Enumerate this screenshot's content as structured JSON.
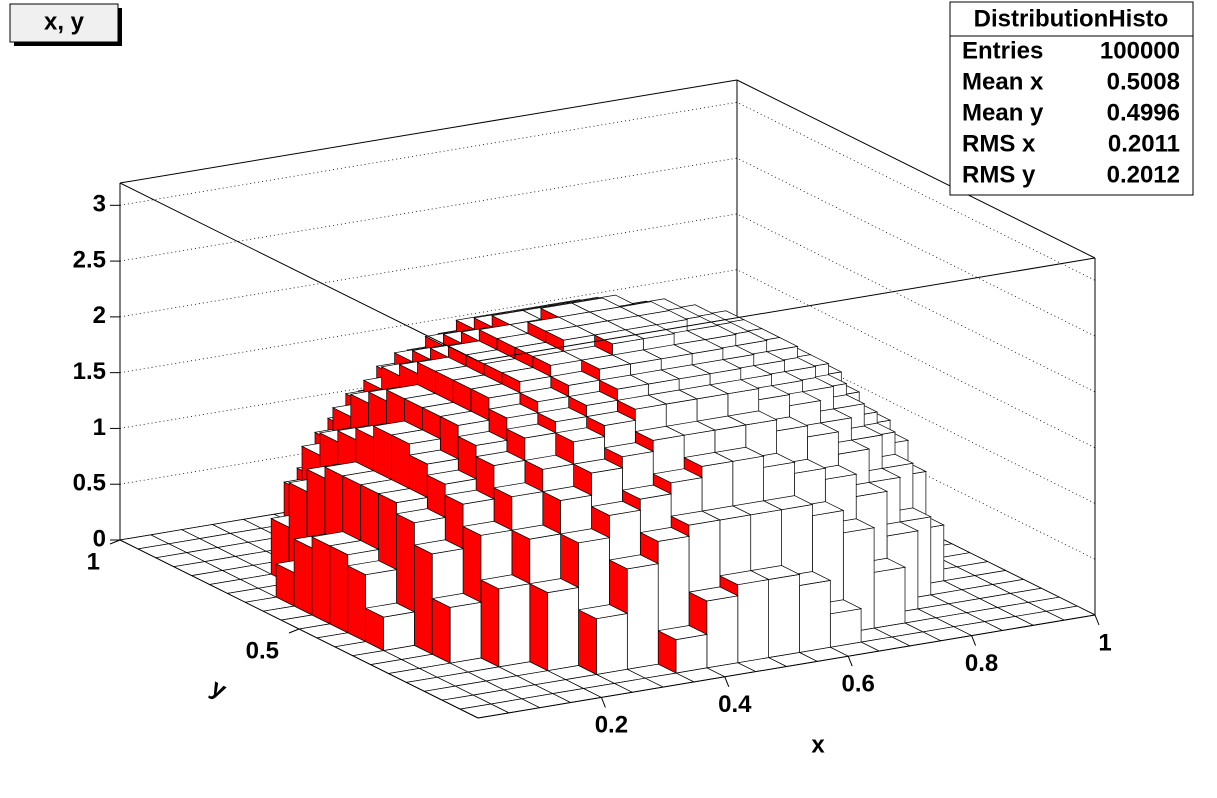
{
  "chart_data": {
    "type": "lego",
    "title": "x, y",
    "xlabel": "x",
    "ylabel": "y",
    "xlim": [
      0,
      1
    ],
    "ylim": [
      0,
      1
    ],
    "zlim": [
      0,
      3.2
    ],
    "xticks": [
      0.2,
      0.4,
      0.6,
      0.8,
      1
    ],
    "yticks": [
      0.5,
      1
    ],
    "zticks": [
      0,
      0.5,
      1,
      1.5,
      2,
      2.5,
      3
    ],
    "grid": true,
    "side_color": "#ff0000",
    "top_color": "#ffffff",
    "xbins": [
      0,
      0.05,
      0.1,
      0.15,
      0.2,
      0.25,
      0.3,
      0.35,
      0.4,
      0.45,
      0.5,
      0.55,
      0.6,
      0.65,
      0.7,
      0.75,
      0.8,
      0.85,
      0.9,
      0.95,
      1
    ],
    "ybins": [
      0,
      0.05,
      0.1,
      0.15,
      0.2,
      0.25,
      0.3,
      0.35,
      0.4,
      0.45,
      0.5,
      0.55,
      0.6,
      0.65,
      0.7,
      0.75,
      0.8,
      0.85,
      0.9,
      0.95,
      1
    ],
    "z": [
      [
        0,
        0,
        0,
        0,
        0,
        0,
        0,
        0,
        0,
        0,
        0,
        0,
        0,
        0,
        0,
        0,
        0,
        0,
        0,
        0
      ],
      [
        0,
        0,
        0,
        0,
        0,
        0,
        0,
        0.3,
        0.6,
        0.7,
        0.7,
        0.6,
        0.3,
        0,
        0,
        0,
        0,
        0,
        0,
        0
      ],
      [
        0,
        0,
        0,
        0,
        0,
        0.5,
        0.9,
        1.1,
        1.2,
        1.2,
        1.2,
        1.2,
        1.1,
        0.9,
        0.5,
        0,
        0,
        0,
        0,
        0
      ],
      [
        0,
        0,
        0,
        0,
        0.7,
        1.1,
        1.3,
        1.4,
        1.5,
        1.6,
        1.6,
        1.5,
        1.4,
        1.3,
        1.1,
        0.7,
        0,
        0,
        0,
        0
      ],
      [
        0,
        0,
        0,
        0.7,
        1.1,
        1.4,
        1.6,
        1.7,
        1.8,
        1.8,
        1.8,
        1.8,
        1.7,
        1.6,
        1.4,
        1.1,
        0.7,
        0,
        0,
        0
      ],
      [
        0,
        0,
        0.5,
        1.1,
        1.4,
        1.6,
        1.8,
        1.9,
        2,
        2,
        2,
        2,
        1.9,
        1.8,
        1.6,
        1.4,
        1.1,
        0.5,
        0,
        0
      ],
      [
        0,
        0,
        0.9,
        1.3,
        1.6,
        1.8,
        1.9,
        2,
        2.1,
        2.1,
        2.1,
        2.1,
        2,
        1.9,
        1.8,
        1.6,
        1.3,
        0.9,
        0,
        0
      ],
      [
        0,
        0.3,
        1.1,
        1.4,
        1.7,
        1.9,
        2,
        2.1,
        2.2,
        2.2,
        2.2,
        2.2,
        2.1,
        2,
        1.9,
        1.7,
        1.4,
        1.1,
        0.3,
        0
      ],
      [
        0,
        0.6,
        1.2,
        1.5,
        1.8,
        2,
        2.1,
        2.2,
        2.2,
        2.3,
        2.3,
        2.2,
        2.2,
        2.1,
        2,
        1.8,
        1.5,
        1.2,
        0.6,
        0
      ],
      [
        0,
        0.7,
        1.2,
        1.6,
        1.8,
        2,
        2.1,
        2.2,
        2.3,
        2.3,
        2.3,
        2.3,
        2.2,
        2.1,
        2,
        1.8,
        1.6,
        1.2,
        0.7,
        0
      ],
      [
        0,
        0.7,
        1.2,
        1.6,
        1.8,
        2,
        2.1,
        2.2,
        2.3,
        2.3,
        2.3,
        2.3,
        2.2,
        2.1,
        2,
        1.8,
        1.6,
        1.2,
        0.7,
        0
      ],
      [
        0,
        0.6,
        1.2,
        1.5,
        1.8,
        2,
        2.1,
        2.2,
        2.2,
        2.3,
        2.3,
        2.2,
        2.2,
        2.1,
        2,
        1.8,
        1.5,
        1.2,
        0.6,
        0
      ],
      [
        0,
        0.3,
        1.1,
        1.4,
        1.7,
        1.9,
        2,
        2.1,
        2.2,
        2.2,
        2.2,
        2.2,
        2.1,
        2,
        1.9,
        1.7,
        1.4,
        1.1,
        0.3,
        0
      ],
      [
        0,
        0,
        0.9,
        1.3,
        1.6,
        1.8,
        1.9,
        2,
        2.1,
        2.1,
        2.1,
        2.1,
        2,
        1.9,
        1.8,
        1.6,
        1.3,
        0.9,
        0,
        0
      ],
      [
        0,
        0,
        0.5,
        1.1,
        1.4,
        1.6,
        1.8,
        1.9,
        2,
        2,
        2,
        2,
        1.9,
        1.8,
        1.6,
        1.4,
        1.1,
        0.5,
        0,
        0
      ],
      [
        0,
        0,
        0,
        0.7,
        1.1,
        1.4,
        1.6,
        1.7,
        1.8,
        1.8,
        1.8,
        1.8,
        1.7,
        1.6,
        1.4,
        1.1,
        0.7,
        0,
        0,
        0
      ],
      [
        0,
        0,
        0,
        0,
        0.7,
        1.1,
        1.3,
        1.4,
        1.5,
        1.6,
        1.6,
        1.5,
        1.4,
        1.3,
        1.1,
        0.7,
        0,
        0,
        0,
        0
      ],
      [
        0,
        0,
        0,
        0,
        0,
        0.5,
        0.9,
        1.1,
        1.2,
        1.2,
        1.2,
        1.2,
        1.1,
        0.9,
        0.5,
        0,
        0,
        0,
        0,
        0
      ],
      [
        0,
        0,
        0,
        0,
        0,
        0,
        0,
        0.3,
        0.6,
        0.7,
        0.7,
        0.6,
        0.3,
        0,
        0,
        0,
        0,
        0,
        0,
        0
      ],
      [
        0,
        0,
        0,
        0,
        0,
        0,
        0,
        0,
        0,
        0,
        0,
        0,
        0,
        0,
        0,
        0,
        0,
        0,
        0,
        0
      ]
    ],
    "stats": {
      "title": "DistributionHisto",
      "rows": [
        {
          "label": "Entries",
          "value": 100000
        },
        {
          "label": "Mean x",
          "value": 0.5008
        },
        {
          "label": "Mean y",
          "value": 0.4996
        },
        {
          "label": "RMS x",
          "value": 0.2011
        },
        {
          "label": "RMS y",
          "value": 0.2012
        }
      ]
    }
  }
}
